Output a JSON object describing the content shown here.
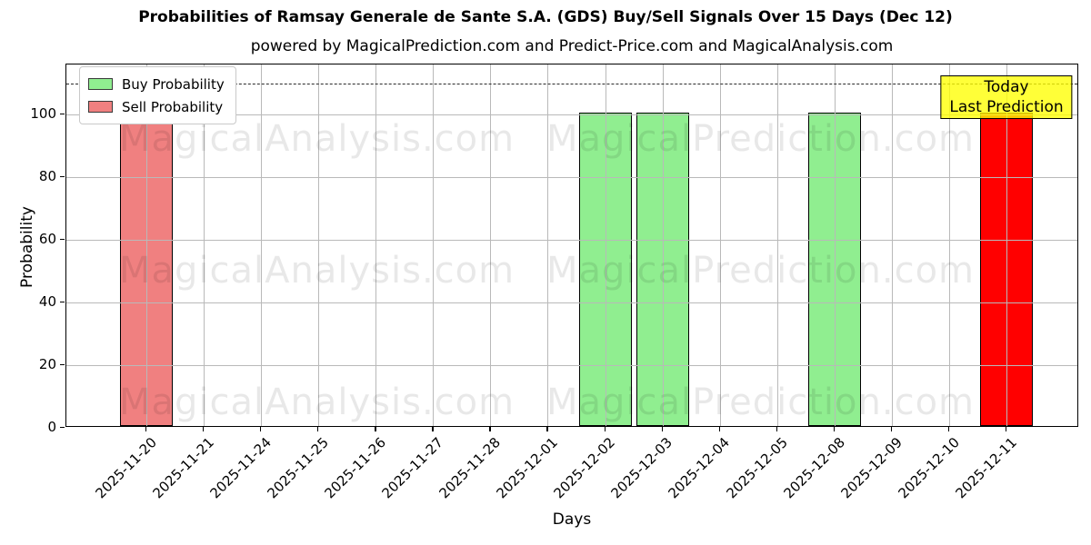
{
  "chart_data": {
    "type": "bar",
    "title": "Probabilities of Ramsay Generale de Sante S.A. (GDS) Buy/Sell Signals Over 15 Days (Dec 12)",
    "subtitle": "powered by MagicalPrediction.com and Predict-Price.com and MagicalAnalysis.com",
    "xlabel": "Days",
    "ylabel": "Probability",
    "categories": [
      "2025-11-20",
      "2025-11-21",
      "2025-11-24",
      "2025-11-25",
      "2025-11-26",
      "2025-11-27",
      "2025-11-28",
      "2025-12-01",
      "2025-12-02",
      "2025-12-03",
      "2025-12-04",
      "2025-12-05",
      "2025-12-08",
      "2025-12-09",
      "2025-12-10",
      "2025-12-11"
    ],
    "series": [
      {
        "name": "Buy Probability",
        "color": "#90ee90",
        "values": [
          0,
          0,
          0,
          0,
          0,
          0,
          0,
          0,
          100,
          100,
          0,
          0,
          100,
          0,
          0,
          0
        ]
      },
      {
        "name": "Sell Probability",
        "color": "#f08080",
        "values": [
          100,
          0,
          0,
          0,
          0,
          0,
          0,
          0,
          0,
          0,
          0,
          0,
          0,
          0,
          0,
          0
        ]
      },
      {
        "name": "Today Last Prediction",
        "color": "#ff0000",
        "values": [
          0,
          0,
          0,
          0,
          0,
          0,
          0,
          0,
          0,
          0,
          0,
          0,
          0,
          0,
          0,
          100
        ]
      }
    ],
    "yticks": [
      0,
      20,
      40,
      60,
      80,
      100
    ],
    "ylim": [
      0,
      116
    ],
    "dashed_line_y": 110,
    "grid": true,
    "legend_position": "upper-left",
    "legend_items": [
      "Buy Probability",
      "Sell Probability"
    ],
    "annotation": {
      "line1": "Today",
      "line2": "Last Prediction",
      "bg_color": "#ffff00",
      "border_color": "#000000"
    },
    "watermarks": [
      "MagicalAnalysis.com",
      "MagicalPrediction.com"
    ]
  },
  "colors": {
    "buy": "#90ee90",
    "sell": "#f08080",
    "today_bar": "#ff0000",
    "grid": "#b9b9b9",
    "annotation_bg": "#ffff00"
  }
}
